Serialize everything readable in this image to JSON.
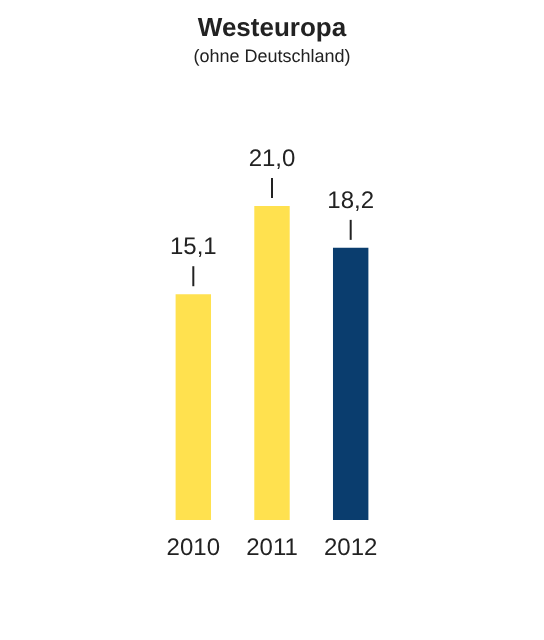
{
  "chart_data": {
    "type": "bar",
    "title": "Westeuropa",
    "subtitle": "(ohne Deutschland)",
    "categories": [
      "2010",
      "2011",
      "2012"
    ],
    "values": [
      15.1,
      21.0,
      18.2
    ],
    "colors": [
      "#ffe14f",
      "#ffe14f",
      "#0a3d6e"
    ],
    "value_labels": [
      "15,1",
      "21,0",
      "18,2"
    ]
  }
}
